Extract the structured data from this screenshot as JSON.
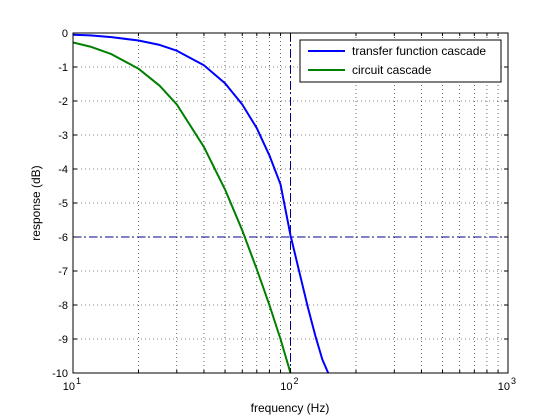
{
  "chart_data": {
    "type": "line",
    "xlabel": "frequency (Hz)",
    "ylabel": "response (dB)",
    "xscale": "log",
    "xlim": [
      10,
      1000
    ],
    "ylim": [
      -10,
      0
    ],
    "grid": true,
    "legend_position": "top-right",
    "x_tick_labels": [
      "10",
      "10",
      "10"
    ],
    "x_tick_exponents": [
      "1",
      "2",
      "3"
    ],
    "x_tick_values": [
      10,
      100,
      1000
    ],
    "y_ticks": [
      0,
      -1,
      -2,
      -3,
      -4,
      -5,
      -6,
      -7,
      -8,
      -9,
      -10
    ],
    "series": [
      {
        "name": "transfer function cascade",
        "color": "#0000ff",
        "x": [
          10,
          12,
          15,
          20,
          25,
          30,
          40,
          50,
          60,
          70,
          80,
          90,
          100,
          110,
          120,
          130,
          140,
          149
        ],
        "y": [
          -0.05,
          -0.07,
          -0.12,
          -0.22,
          -0.35,
          -0.52,
          -0.95,
          -1.48,
          -2.1,
          -2.8,
          -3.6,
          -4.45,
          -5.95,
          -7.05,
          -8.05,
          -8.9,
          -9.6,
          -10
        ]
      },
      {
        "name": "circuit cascade",
        "color": "#008000",
        "x": [
          10,
          12,
          15,
          20,
          25,
          30,
          40,
          50,
          60,
          70,
          80,
          90,
          100
        ],
        "y": [
          -0.28,
          -0.4,
          -0.62,
          -1.05,
          -1.55,
          -2.1,
          -3.35,
          -4.6,
          -5.8,
          -6.95,
          -8.0,
          -9.0,
          -10
        ]
      }
    ],
    "reference_lines": [
      {
        "orientation": "vertical",
        "value": 100,
        "color": "#00008b"
      },
      {
        "orientation": "horizontal",
        "value": -6,
        "color": "#00008b"
      }
    ]
  }
}
